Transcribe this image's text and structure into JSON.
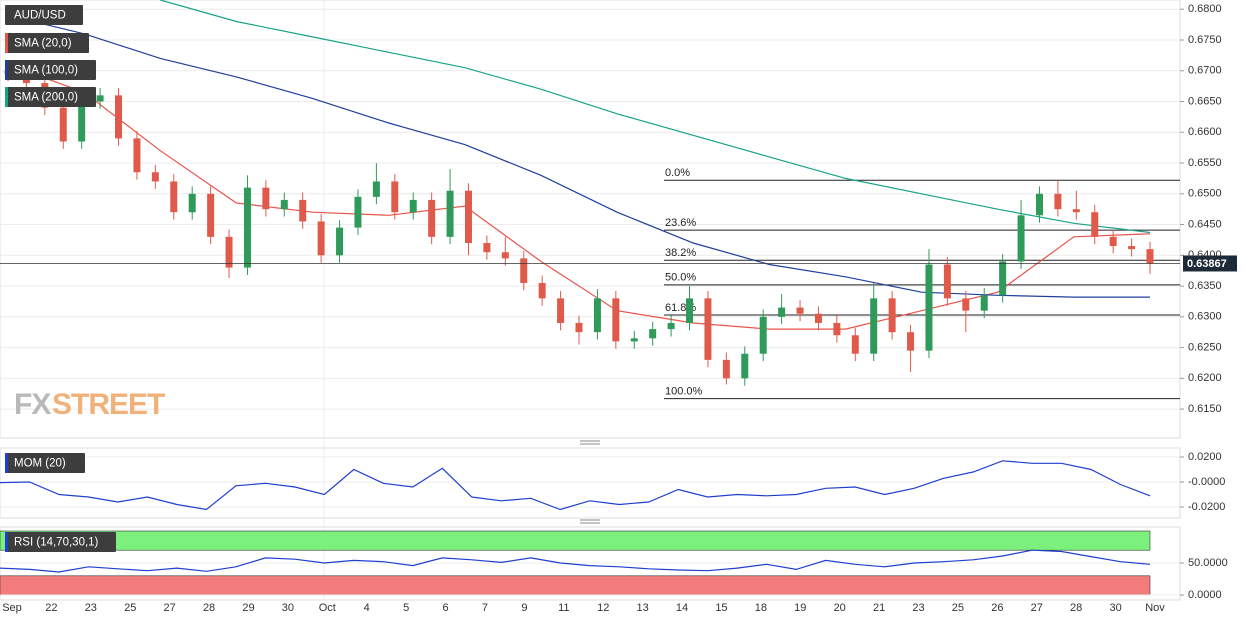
{
  "chart_data": [
    {
      "type": "candlestick",
      "title": "AUD/USD",
      "legend": [
        "SMA (20,0)",
        "SMA (100,0)",
        "SMA (200,0)"
      ],
      "watermark": [
        "FX",
        "STREET"
      ],
      "up_color": "#2f9a5a",
      "down_color": "#e05a4c",
      "open": [
        0.67,
        0.6695,
        0.668,
        0.664,
        0.6585,
        0.665,
        0.666,
        0.659,
        0.6535,
        0.652,
        0.647,
        0.65,
        0.643,
        0.638,
        0.651,
        0.6475,
        0.649,
        0.6455,
        0.64,
        0.6445,
        0.6495,
        0.652,
        0.647,
        0.649,
        0.643,
        0.6505,
        0.642,
        0.6405,
        0.6395,
        0.6355,
        0.633,
        0.629,
        0.6275,
        0.633,
        0.626,
        0.6265,
        0.628,
        0.629,
        0.633,
        0.623,
        0.62,
        0.624,
        0.63,
        0.6315,
        0.6305,
        0.629,
        0.627,
        0.624,
        0.633,
        0.6275,
        0.6245,
        0.6385,
        0.633,
        0.631,
        0.6335,
        0.639,
        0.6465,
        0.65,
        0.6475,
        0.647,
        0.643,
        0.6415,
        0.641
      ],
      "high": [
        0.6712,
        0.6707,
        0.6692,
        0.6652,
        0.6662,
        0.6672,
        0.6672,
        0.6602,
        0.6547,
        0.6532,
        0.6512,
        0.6512,
        0.6442,
        0.653,
        0.6522,
        0.6502,
        0.6502,
        0.6467,
        0.6457,
        0.6507,
        0.655,
        0.6532,
        0.6502,
        0.6502,
        0.654,
        0.6517,
        0.6432,
        0.643,
        0.6407,
        0.6367,
        0.6342,
        0.6302,
        0.6345,
        0.6342,
        0.6277,
        0.6292,
        0.6302,
        0.635,
        0.6342,
        0.6242,
        0.6252,
        0.6312,
        0.6337,
        0.6327,
        0.6317,
        0.6302,
        0.6282,
        0.6355,
        0.6342,
        0.6287,
        0.641,
        0.6397,
        0.6342,
        0.6347,
        0.6402,
        0.649,
        0.6512,
        0.6522,
        0.6505,
        0.6482,
        0.6442,
        0.6427,
        0.6422
      ],
      "low": [
        0.6683,
        0.6668,
        0.6628,
        0.6573,
        0.6573,
        0.6638,
        0.6578,
        0.6523,
        0.6508,
        0.6458,
        0.6458,
        0.6418,
        0.6363,
        0.6368,
        0.6463,
        0.6463,
        0.6443,
        0.6388,
        0.6388,
        0.6433,
        0.6483,
        0.6458,
        0.6458,
        0.6418,
        0.6418,
        0.64,
        0.6393,
        0.6383,
        0.6343,
        0.6318,
        0.6278,
        0.6255,
        0.6263,
        0.6248,
        0.6248,
        0.6253,
        0.6268,
        0.6278,
        0.6218,
        0.619,
        0.6188,
        0.6228,
        0.6288,
        0.6293,
        0.6278,
        0.6258,
        0.6228,
        0.6228,
        0.6263,
        0.621,
        0.6233,
        0.6318,
        0.6275,
        0.6298,
        0.6323,
        0.6378,
        0.6453,
        0.6463,
        0.6458,
        0.6418,
        0.6403,
        0.6398,
        0.637
      ],
      "close": [
        0.6695,
        0.668,
        0.664,
        0.6585,
        0.665,
        0.666,
        0.659,
        0.6535,
        0.652,
        0.647,
        0.65,
        0.643,
        0.638,
        0.651,
        0.6475,
        0.649,
        0.6455,
        0.64,
        0.6445,
        0.6495,
        0.652,
        0.647,
        0.649,
        0.643,
        0.6505,
        0.642,
        0.6405,
        0.6395,
        0.6355,
        0.633,
        0.629,
        0.6275,
        0.633,
        0.626,
        0.6265,
        0.628,
        0.629,
        0.633,
        0.623,
        0.62,
        0.624,
        0.63,
        0.6315,
        0.6305,
        0.629,
        0.627,
        0.624,
        0.633,
        0.6275,
        0.6245,
        0.6385,
        0.633,
        0.631,
        0.6335,
        0.639,
        0.6465,
        0.65,
        0.6475,
        0.647,
        0.643,
        0.6415,
        0.641,
        0.6387
      ],
      "series": [
        {
          "name": "SMA (20,0)",
          "color": "#e8544a",
          "values": [
            0.671,
            0.6665,
            0.657,
            0.6485,
            0.647,
            0.6465,
            0.648,
            0.639,
            0.631,
            0.629,
            0.628,
            0.628,
            0.631,
            0.634,
            0.643,
            0.6435
          ]
        },
        {
          "name": "SMA (100,0)",
          "color": "#1f3f9c",
          "values": [
            0.679,
            0.676,
            0.672,
            0.669,
            0.6655,
            0.6615,
            0.658,
            0.653,
            0.647,
            0.642,
            0.6385,
            0.6365,
            0.634,
            0.6335,
            0.6332,
            0.6332
          ]
        },
        {
          "name": "SMA (200,0)",
          "color": "#17a388",
          "values": [
            null,
            null,
            0.6815,
            0.678,
            0.6755,
            0.673,
            0.6705,
            0.667,
            0.663,
            0.6595,
            0.656,
            0.6525,
            0.65,
            0.6475,
            0.6452,
            0.6437
          ]
        }
      ],
      "fibonacci": [
        {
          "label": "0.0%",
          "value": 0.6522
        },
        {
          "label": "23.6%",
          "value": 0.6441
        },
        {
          "label": "38.2%",
          "value": 0.6392
        },
        {
          "label": "50.0%",
          "value": 0.6352
        },
        {
          "label": "61.8%",
          "value": 0.6303
        },
        {
          "label": "100.0%",
          "value": 0.6167
        }
      ],
      "last_price": {
        "value": 0.63867,
        "label": "0.63867"
      },
      "ylim": [
        0.6103,
        0.6815
      ],
      "yticks": [
        {
          "value": 0.68,
          "label": "0.6800"
        },
        {
          "value": 0.675,
          "label": "0.6750"
        },
        {
          "value": 0.67,
          "label": "0.6700"
        },
        {
          "value": 0.665,
          "label": "0.6650"
        },
        {
          "value": 0.66,
          "label": "0.6600"
        },
        {
          "value": 0.655,
          "label": "0.6550"
        },
        {
          "value": 0.65,
          "label": "0.6500"
        },
        {
          "value": 0.645,
          "label": "0.6450"
        },
        {
          "value": 0.64,
          "label": "0.6400"
        },
        {
          "value": 0.635,
          "label": "0.6350"
        },
        {
          "value": 0.63,
          "label": "0.6300"
        },
        {
          "value": 0.625,
          "label": "0.6250"
        },
        {
          "value": 0.62,
          "label": "0.6200"
        },
        {
          "value": 0.615,
          "label": "0.6150"
        }
      ],
      "grid": true,
      "x_labels": [
        "Sep",
        "22",
        "23",
        "25",
        "27",
        "28",
        "29",
        "30",
        "Oct",
        "4",
        "5",
        "6",
        "7",
        "9",
        "11",
        "12",
        "13",
        "14",
        "15",
        "18",
        "19",
        "20",
        "21",
        "23",
        "25",
        "26",
        "27",
        "28",
        "30",
        "Nov"
      ]
    },
    {
      "type": "line",
      "title": "MOM (20)",
      "series": [
        {
          "name": "MOM (20)",
          "color": "#1f3fd0",
          "values": [
            -0.0005,
            0.0,
            -0.01,
            -0.012,
            -0.016,
            -0.012,
            -0.018,
            -0.022,
            -0.003,
            -0.001,
            -0.004,
            -0.01,
            0.01,
            -0.001,
            -0.004,
            0.011,
            -0.012,
            -0.015,
            -0.013,
            -0.022,
            -0.015,
            -0.018,
            -0.016,
            -0.006,
            -0.012,
            -0.01,
            -0.011,
            -0.01,
            -0.005,
            -0.004,
            -0.01,
            -0.005,
            0.003,
            0.008,
            0.017,
            0.015,
            0.015,
            0.01,
            -0.002,
            -0.011
          ]
        }
      ],
      "ylim": [
        -0.0288,
        0.0272
      ],
      "yticks": [
        {
          "value": 0.02,
          "label": "0.0200"
        },
        {
          "value": 0,
          "label": "-0.0000"
        },
        {
          "value": -0.02,
          "label": "-0.0200"
        }
      ],
      "grid": true
    },
    {
      "type": "line",
      "title": "RSI (14,70,30,1)",
      "upper": 70,
      "lower": 30,
      "upper_color": "#7cf07c",
      "lower_color": "#f27c7c",
      "series": [
        {
          "name": "RSI (14,70,30,1)",
          "color": "#1f3fd0",
          "values": [
            42,
            40,
            36,
            44,
            41,
            38,
            42,
            37,
            44,
            58,
            56,
            50,
            54,
            52,
            46,
            58,
            55,
            51,
            58,
            50,
            46,
            44,
            41,
            39,
            38,
            42,
            48,
            40,
            54,
            48,
            44,
            50,
            52,
            55,
            61,
            70,
            68,
            60,
            52,
            48
          ]
        }
      ],
      "ylim": [
        -7.8,
        106.25
      ],
      "yticks": [
        {
          "value": 50,
          "label": "50.0000"
        },
        {
          "value": 0,
          "label": "0.0000"
        }
      ],
      "grid": true
    }
  ]
}
